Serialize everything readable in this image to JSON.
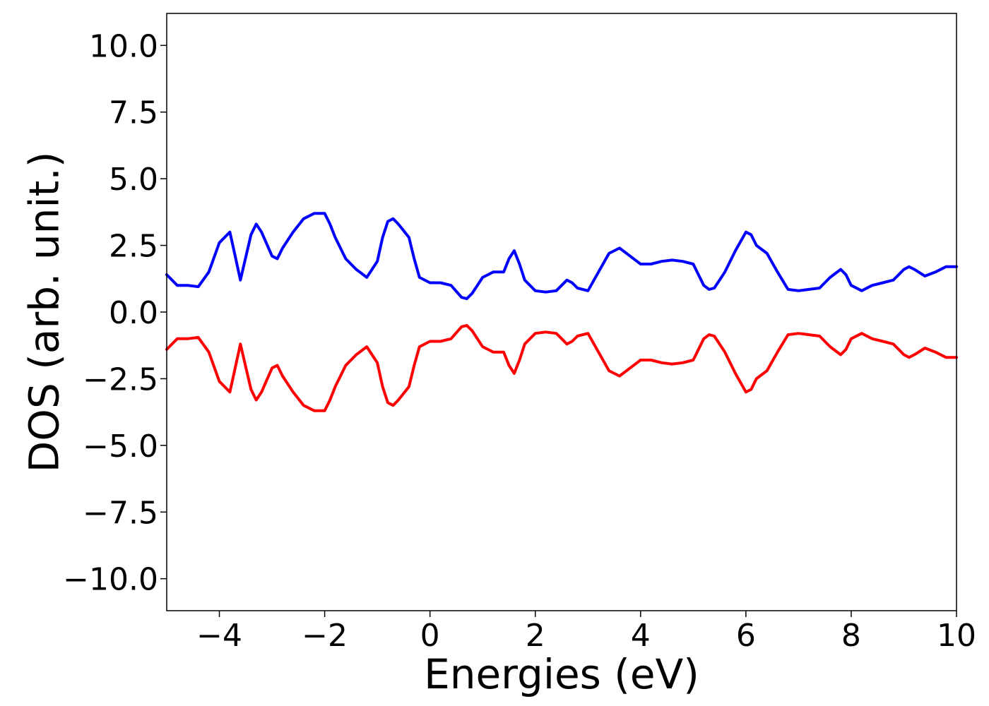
{
  "chart_data": {
    "type": "line",
    "title": "",
    "xlabel": "Energies (eV)",
    "ylabel": "DOS (arb. unit.)",
    "xlim": [
      -5,
      10
    ],
    "ylim": [
      -11.2,
      11.2
    ],
    "xticks": [
      -4,
      -2,
      0,
      2,
      4,
      6,
      8,
      10
    ],
    "xtick_labels": [
      "−4",
      "−2",
      "0",
      "2",
      "4",
      "6",
      "8",
      "10"
    ],
    "yticks": [
      10.0,
      7.5,
      5.0,
      2.5,
      0.0,
      -2.5,
      -5.0,
      -7.5,
      -10.0
    ],
    "ytick_labels": [
      "10.0",
      "7.5",
      "5.0",
      "2.5",
      "0.0",
      "−2.5",
      "−5.0",
      "−7.5",
      "−10.0"
    ],
    "grid": false,
    "legend": "none",
    "series": [
      {
        "color": "#0000ff",
        "x": [
          -5.0,
          -4.8,
          -4.6,
          -4.4,
          -4.2,
          -4.0,
          -3.8,
          -3.7,
          -3.6,
          -3.4,
          -3.3,
          -3.2,
          -3.0,
          -2.9,
          -2.8,
          -2.6,
          -2.4,
          -2.2,
          -2.0,
          -1.9,
          -1.8,
          -1.6,
          -1.4,
          -1.2,
          -1.0,
          -0.9,
          -0.8,
          -0.7,
          -0.6,
          -0.4,
          -0.3,
          -0.2,
          0.0,
          0.2,
          0.4,
          0.6,
          0.7,
          0.8,
          1.0,
          1.1,
          1.2,
          1.4,
          1.5,
          1.6,
          1.7,
          1.8,
          2.0,
          2.2,
          2.4,
          2.6,
          2.7,
          2.8,
          3.0,
          3.2,
          3.4,
          3.6,
          3.8,
          4.0,
          4.2,
          4.4,
          4.6,
          4.8,
          5.0,
          5.2,
          5.3,
          5.4,
          5.6,
          5.8,
          6.0,
          6.1,
          6.2,
          6.4,
          6.6,
          6.8,
          7.0,
          7.2,
          7.4,
          7.6,
          7.8,
          7.9,
          8.0,
          8.2,
          8.4,
          8.6,
          8.8,
          9.0,
          9.1,
          9.2,
          9.4,
          9.6,
          9.8,
          10.0
        ],
        "values": [
          1.4,
          1.0,
          1.0,
          0.95,
          1.5,
          2.6,
          3.0,
          2.1,
          1.2,
          2.9,
          3.3,
          3.0,
          2.1,
          2.0,
          2.4,
          3.0,
          3.5,
          3.7,
          3.7,
          3.3,
          2.8,
          2.0,
          1.6,
          1.3,
          1.9,
          2.8,
          3.4,
          3.5,
          3.3,
          2.8,
          2.0,
          1.3,
          1.1,
          1.1,
          1.0,
          0.55,
          0.5,
          0.7,
          1.3,
          1.4,
          1.5,
          1.5,
          2.0,
          2.3,
          1.8,
          1.2,
          0.8,
          0.75,
          0.8,
          1.2,
          1.1,
          0.9,
          0.8,
          1.5,
          2.2,
          2.4,
          2.1,
          1.8,
          1.8,
          1.9,
          1.95,
          1.9,
          1.8,
          1.0,
          0.85,
          0.9,
          1.5,
          2.3,
          3.0,
          2.9,
          2.5,
          2.2,
          1.5,
          0.85,
          0.8,
          0.85,
          0.9,
          1.3,
          1.6,
          1.4,
          1.0,
          0.8,
          1.0,
          1.1,
          1.2,
          1.6,
          1.7,
          1.6,
          1.35,
          1.5,
          1.7,
          1.7
        ]
      },
      {
        "color": "#ff0000",
        "x": [
          -5.0,
          -4.8,
          -4.6,
          -4.4,
          -4.2,
          -4.0,
          -3.8,
          -3.7,
          -3.6,
          -3.4,
          -3.3,
          -3.2,
          -3.0,
          -2.9,
          -2.8,
          -2.6,
          -2.4,
          -2.2,
          -2.0,
          -1.9,
          -1.8,
          -1.6,
          -1.4,
          -1.2,
          -1.0,
          -0.9,
          -0.8,
          -0.7,
          -0.6,
          -0.4,
          -0.3,
          -0.2,
          0.0,
          0.2,
          0.4,
          0.6,
          0.7,
          0.8,
          1.0,
          1.1,
          1.2,
          1.4,
          1.5,
          1.6,
          1.7,
          1.8,
          2.0,
          2.2,
          2.4,
          2.6,
          2.7,
          2.8,
          3.0,
          3.2,
          3.4,
          3.6,
          3.8,
          4.0,
          4.2,
          4.4,
          4.6,
          4.8,
          5.0,
          5.2,
          5.3,
          5.4,
          5.6,
          5.8,
          6.0,
          6.1,
          6.2,
          6.4,
          6.6,
          6.8,
          7.0,
          7.2,
          7.4,
          7.6,
          7.8,
          7.9,
          8.0,
          8.2,
          8.4,
          8.6,
          8.8,
          9.0,
          9.1,
          9.2,
          9.4,
          9.6,
          9.8,
          10.0
        ],
        "values": [
          -1.4,
          -1.0,
          -1.0,
          -0.95,
          -1.5,
          -2.6,
          -3.0,
          -2.1,
          -1.2,
          -2.9,
          -3.3,
          -3.0,
          -2.1,
          -2.0,
          -2.4,
          -3.0,
          -3.5,
          -3.7,
          -3.7,
          -3.3,
          -2.8,
          -2.0,
          -1.6,
          -1.3,
          -1.9,
          -2.8,
          -3.4,
          -3.5,
          -3.3,
          -2.8,
          -2.0,
          -1.3,
          -1.1,
          -1.1,
          -1.0,
          -0.55,
          -0.5,
          -0.7,
          -1.3,
          -1.4,
          -1.5,
          -1.5,
          -2.0,
          -2.3,
          -1.8,
          -1.2,
          -0.8,
          -0.75,
          -0.8,
          -1.2,
          -1.1,
          -0.9,
          -0.8,
          -1.5,
          -2.2,
          -2.4,
          -2.1,
          -1.8,
          -1.8,
          -1.9,
          -1.95,
          -1.9,
          -1.8,
          -1.0,
          -0.85,
          -0.9,
          -1.5,
          -2.3,
          -3.0,
          -2.9,
          -2.5,
          -2.2,
          -1.5,
          -0.85,
          -0.8,
          -0.85,
          -0.9,
          -1.3,
          -1.6,
          -1.4,
          -1.0,
          -0.8,
          -1.0,
          -1.1,
          -1.2,
          -1.6,
          -1.7,
          -1.6,
          -1.35,
          -1.5,
          -1.7,
          -1.7
        ]
      }
    ]
  }
}
